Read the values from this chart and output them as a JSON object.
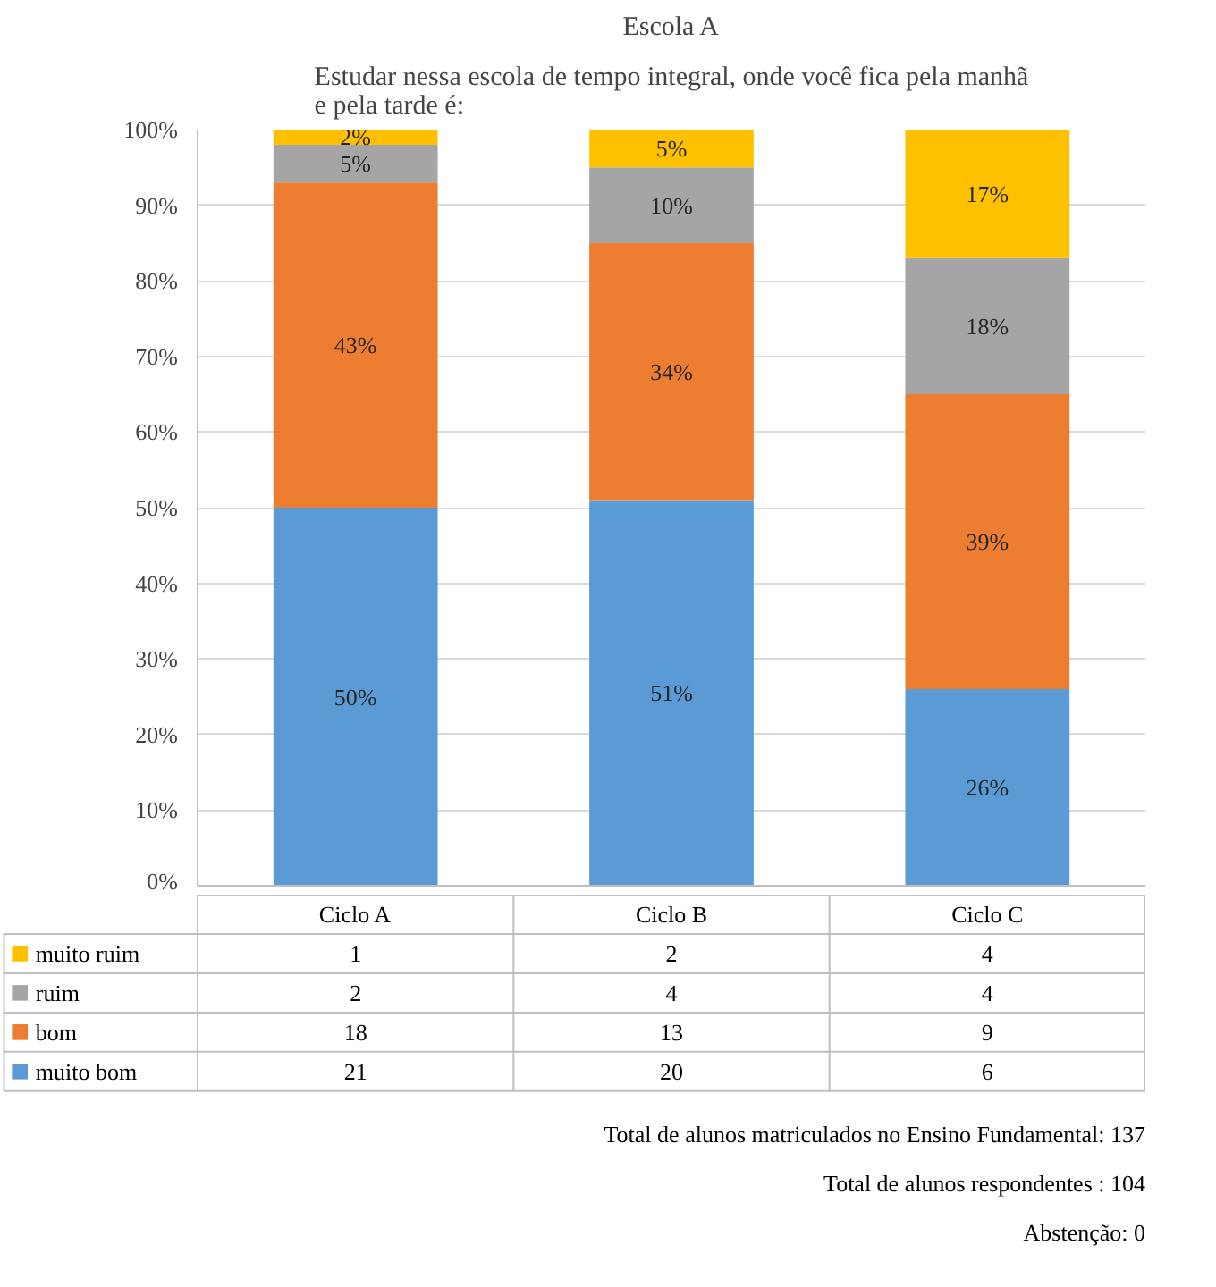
{
  "chart_data": {
    "type": "bar",
    "stacked": true,
    "title": "Escola A",
    "subtitle": "Estudar nessa escola de tempo integral, onde você fica pela manhã\ne pela tarde é:",
    "categories": [
      "Ciclo A",
      "Ciclo B",
      "Ciclo C"
    ],
    "series": [
      {
        "name": "muito bom",
        "color": "#5b9bd5",
        "values": [
          50,
          51,
          26
        ],
        "value_labels": [
          "50%",
          "51%",
          "26%"
        ]
      },
      {
        "name": "bom",
        "color": "#ed7d31",
        "values": [
          43,
          34,
          39
        ],
        "value_labels": [
          "43%",
          "34%",
          "39%"
        ]
      },
      {
        "name": "ruim",
        "color": "#a5a5a5",
        "values": [
          5,
          10,
          18
        ],
        "value_labels": [
          "5%",
          "10%",
          "18%"
        ]
      },
      {
        "name": "muito ruim",
        "color": "#ffc000",
        "values": [
          2,
          5,
          17
        ],
        "value_labels": [
          "2%",
          "5%",
          "17%"
        ]
      }
    ],
    "ylim": [
      0,
      100
    ],
    "yticks": [
      {
        "value": 0,
        "label": "0%"
      },
      {
        "value": 10,
        "label": "10%"
      },
      {
        "value": 20,
        "label": "20%"
      },
      {
        "value": 30,
        "label": "30%"
      },
      {
        "value": 40,
        "label": "40%"
      },
      {
        "value": 50,
        "label": "50%"
      },
      {
        "value": 60,
        "label": "60%"
      },
      {
        "value": 70,
        "label": "70%"
      },
      {
        "value": 80,
        "label": "80%"
      },
      {
        "value": 90,
        "label": "90%"
      },
      {
        "value": 100,
        "label": "100%"
      }
    ],
    "grid": "y",
    "legend": "bottom",
    "annotations": [
      "1",
      "2",
      "4",
      "2",
      "4",
      "4",
      "18",
      "13",
      "9",
      "21",
      "20",
      "6",
      "Total de alunos matriculados no Ensino Fundamental: 137",
      "Total de alunos respondentes : 104",
      "Abstenção: 0"
    ]
  }
}
